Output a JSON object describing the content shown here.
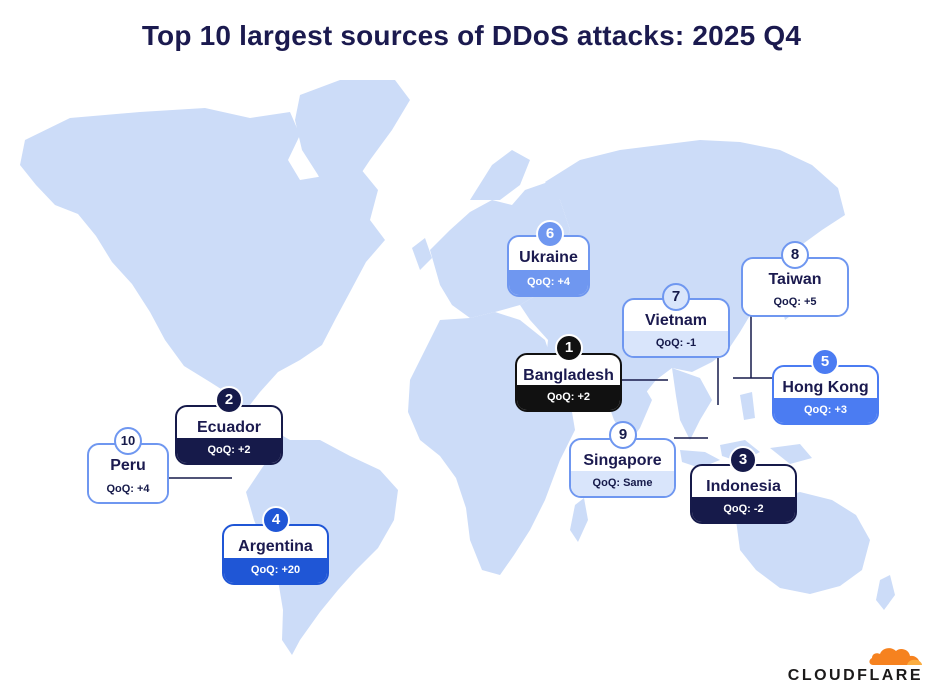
{
  "title": "Top 10 largest sources of DDoS attacks: 2025 Q4",
  "brand": "CLOUDFLARE",
  "colors": {
    "map": "#ccdcf8",
    "navy": "#161a4a",
    "black": "#111111",
    "mid": "#6f97f0",
    "light": "#d9e5fb",
    "blue": "#1f56d6",
    "brightBlue": "#4b7cf2",
    "border": "#6f97f0",
    "logoOrange": "#f6821f"
  },
  "countries": [
    {
      "rank": "1",
      "name": "Bangladesh",
      "qoq": "QoQ: +2"
    },
    {
      "rank": "2",
      "name": "Ecuador",
      "qoq": "QoQ: +2"
    },
    {
      "rank": "3",
      "name": "Indonesia",
      "qoq": "QoQ: -2"
    },
    {
      "rank": "4",
      "name": "Argentina",
      "qoq": "QoQ: +20"
    },
    {
      "rank": "5",
      "name": "Hong Kong",
      "qoq": "QoQ: +3"
    },
    {
      "rank": "6",
      "name": "Ukraine",
      "qoq": "QoQ: +4"
    },
    {
      "rank": "7",
      "name": "Vietnam",
      "qoq": "QoQ: -1"
    },
    {
      "rank": "8",
      "name": "Taiwan",
      "qoq": "QoQ: +5"
    },
    {
      "rank": "9",
      "name": "Singapore",
      "qoq": "QoQ: Same"
    },
    {
      "rank": "10",
      "name": "Peru",
      "qoq": "QoQ: +4"
    }
  ]
}
